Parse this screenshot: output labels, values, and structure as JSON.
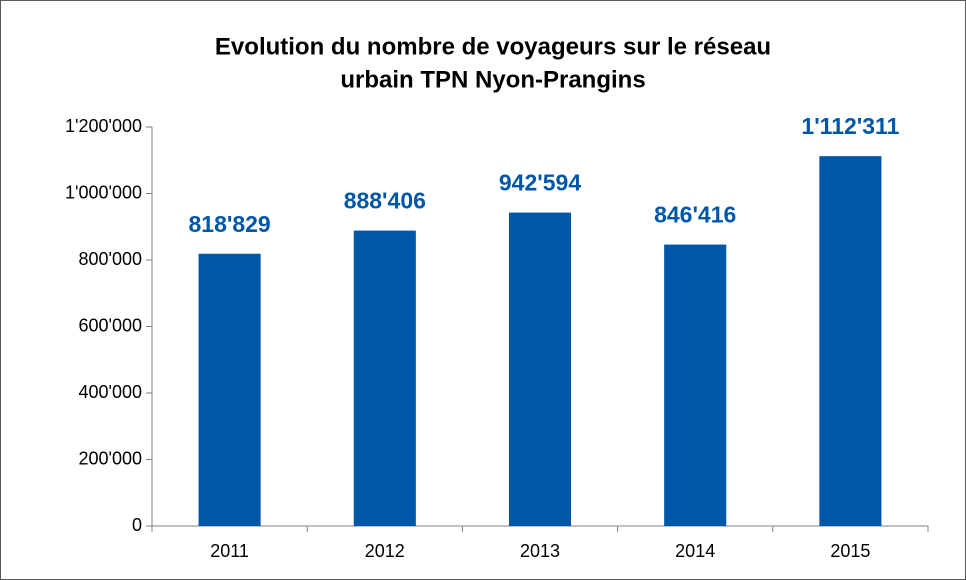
{
  "chart_data": {
    "type": "bar",
    "title": [
      "Evolution du nombre de voyageurs  sur le réseau",
      "urbain TPN Nyon-Prangins"
    ],
    "categories": [
      "2011",
      "2012",
      "2013",
      "2014",
      "2015"
    ],
    "values": [
      818829,
      888406,
      942594,
      846416,
      1112311
    ],
    "value_labels": [
      "818'829",
      "888'406",
      "942'594",
      "846'416",
      "1'112'311"
    ],
    "color": "#0057a8",
    "ylim": [
      0,
      1200000
    ],
    "yticks": [
      0,
      {
        "value": 200000,
        "label": "200'000"
      },
      {
        "value": 400000,
        "label": "400'000"
      },
      {
        "value": 600000,
        "label": "600'000"
      },
      {
        "value": 800000,
        "label": "800'000"
      },
      {
        "value": 1000000,
        "label": "1'000'000"
      },
      {
        "value": 1200000,
        "label": "1'200'000"
      }
    ],
    "grid": false
  }
}
